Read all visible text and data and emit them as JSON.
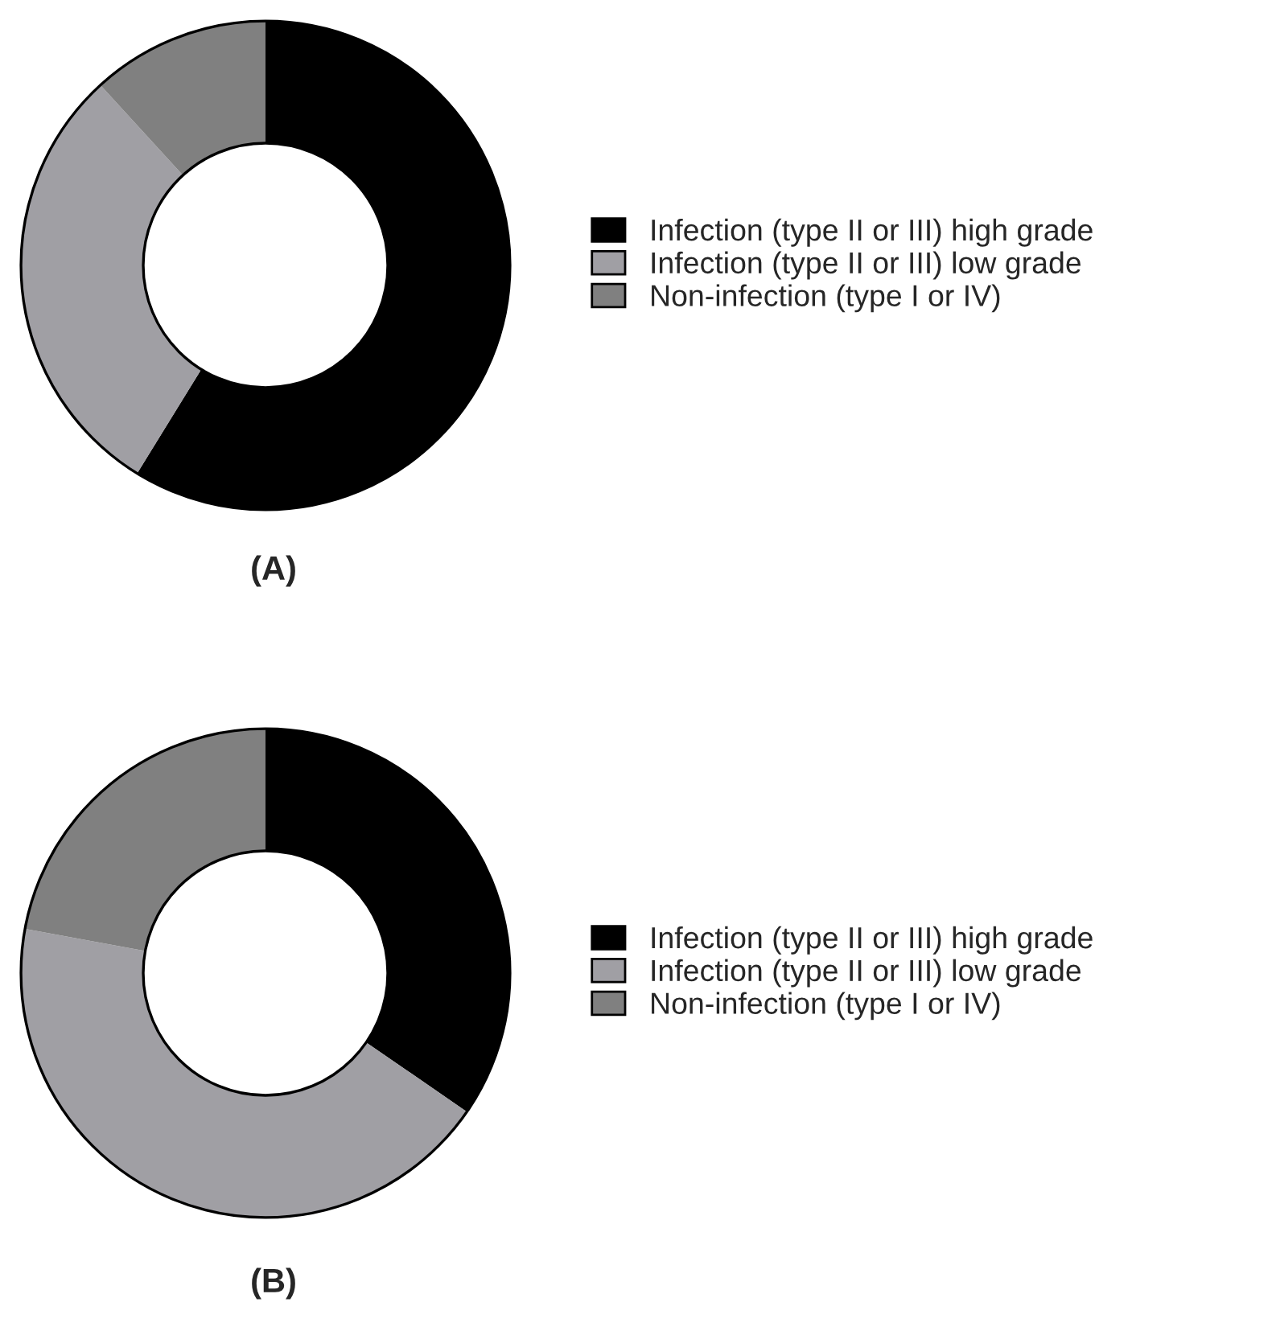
{
  "chart_data": [
    {
      "type": "donut",
      "title": "(A)",
      "categories": [
        "Infection (type II or III) high grade",
        "Infection (type II or III) low grade",
        "Non-infection (type I or IV)"
      ],
      "values": [
        58.8,
        29.4,
        11.8
      ],
      "colors": [
        "#000000",
        "#a09fa4",
        "#808080"
      ],
      "legend": "right"
    },
    {
      "type": "donut",
      "title": "(B)",
      "categories": [
        "Infection (type II or III) high grade",
        "Infection (type II or III) low grade",
        "Non-infection (type I or IV)"
      ],
      "values": [
        34.6,
        43.3,
        22.1
      ],
      "colors": [
        "#000000",
        "#a09fa4",
        "#808080"
      ],
      "legend": "right"
    }
  ]
}
